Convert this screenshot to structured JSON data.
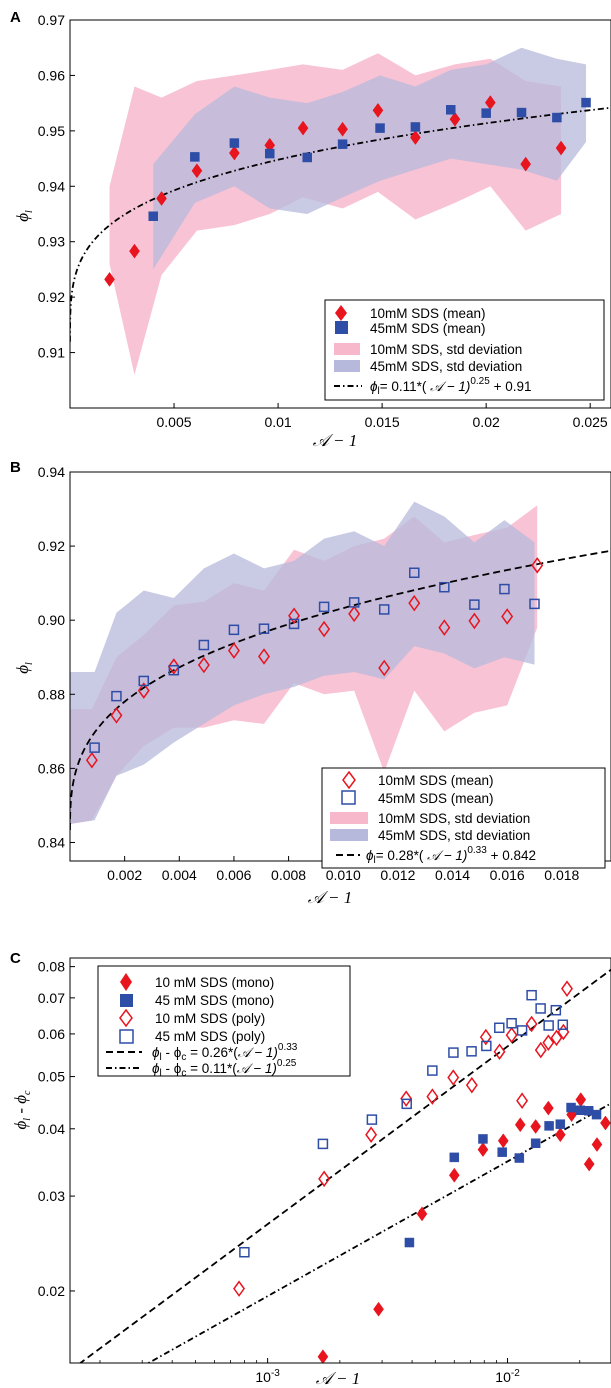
{
  "colors": {
    "red": "#e8141e",
    "blue": "#2e4da6",
    "pink_band": "#f7b8cc",
    "blue_band": "#b7b9dc"
  },
  "panel_letters": [
    "A",
    "B",
    "C"
  ],
  "chart_data": [
    {
      "panel": "A",
      "type": "scatter",
      "xlabel": "𝒜 − 1",
      "ylabel": "ϕ",
      "ylabel_sub": "l",
      "xlim": [
        0,
        0.026
      ],
      "ylim": [
        0.9,
        0.97
      ],
      "xticks": [
        "0.005",
        "0.01",
        "0.015",
        "0.02",
        "0.025"
      ],
      "xtick_values": [
        0.005,
        0.01,
        0.015,
        0.02,
        0.025
      ],
      "yticks": [
        "0.91",
        "0.92",
        "0.93",
        "0.94",
        "0.95",
        "0.96",
        "0.97"
      ],
      "ytick_values": [
        0.91,
        0.92,
        0.93,
        0.94,
        0.95,
        0.96,
        0.97
      ],
      "series": [
        {
          "name": "10mM SDS (mean)",
          "marker": "diamond-filled",
          "color": "red",
          "x": [
            0.0019,
            0.0031,
            0.0044,
            0.0061,
            0.0079,
            0.0096,
            0.0112,
            0.0131,
            0.0148,
            0.0166,
            0.0185,
            0.0202,
            0.0219,
            0.0236
          ],
          "y": [
            0.9232,
            0.9283,
            0.9378,
            0.9428,
            0.946,
            0.9474,
            0.9505,
            0.9503,
            0.9537,
            0.9488,
            0.9521,
            0.9551,
            0.944,
            0.9469
          ]
        },
        {
          "name": "45mM SDS (mean)",
          "marker": "square-filled",
          "color": "blue",
          "x": [
            0.004,
            0.006,
            0.0079,
            0.0096,
            0.0114,
            0.0131,
            0.0149,
            0.0166,
            0.0183,
            0.02,
            0.0217,
            0.0234,
            0.0248
          ],
          "y": [
            0.9346,
            0.9453,
            0.9478,
            0.9459,
            0.9452,
            0.9476,
            0.9505,
            0.9507,
            0.9538,
            0.9532,
            0.9533,
            0.9524,
            0.9551
          ]
        }
      ],
      "bands": [
        {
          "name": "10mM SDS, std deviation",
          "color": "pink_band",
          "x": [
            0.0019,
            0.0031,
            0.0044,
            0.0061,
            0.0079,
            0.0096,
            0.0112,
            0.0131,
            0.0148,
            0.0166,
            0.0185,
            0.0202,
            0.0219,
            0.0236
          ],
          "upper": [
            0.94,
            0.958,
            0.956,
            0.959,
            0.96,
            0.961,
            0.962,
            0.961,
            0.964,
            0.96,
            0.962,
            0.963,
            0.959,
            0.958
          ],
          "lower": [
            0.926,
            0.906,
            0.924,
            0.932,
            0.933,
            0.935,
            0.938,
            0.936,
            0.939,
            0.934,
            0.937,
            0.94,
            0.932,
            0.935
          ]
        },
        {
          "name": "45mM SDS, std deviation",
          "color": "blue_band",
          "x": [
            0.004,
            0.006,
            0.0079,
            0.0096,
            0.0114,
            0.0131,
            0.0149,
            0.0166,
            0.0183,
            0.02,
            0.0217,
            0.0234,
            0.0248
          ],
          "upper": [
            0.944,
            0.953,
            0.958,
            0.956,
            0.955,
            0.957,
            0.96,
            0.958,
            0.961,
            0.962,
            0.965,
            0.963,
            0.962
          ],
          "lower": [
            0.925,
            0.937,
            0.94,
            0.936,
            0.935,
            0.938,
            0.941,
            0.943,
            0.945,
            0.944,
            0.943,
            0.941,
            0.948
          ]
        }
      ],
      "fit": {
        "label_prefix": "ϕ",
        "label_sub": "l",
        "label_text": "= 0.11*(",
        "label_A": " 𝒜 − 1)",
        "label_exp": "0.25",
        "label_tail": " + 0.91",
        "a": 0.11,
        "b": 0.25,
        "c": 0.91,
        "style": "dashdot"
      },
      "legend": [
        "10mM SDS (mean)",
        "45mM SDS (mean)",
        "10mM SDS, std deviation",
        "45mM SDS, std deviation"
      ],
      "legend_position": "bottom-right"
    },
    {
      "panel": "B",
      "type": "scatter",
      "xlabel": "𝒜 − 1",
      "ylabel": "ϕ",
      "ylabel_sub": "l",
      "xlim": [
        0,
        0.0198
      ],
      "ylim": [
        0.835,
        0.94
      ],
      "xticks": [
        "0.002",
        "0.004",
        "0.006",
        "0.008",
        "0.010",
        "0.012",
        "0.014",
        "0.016",
        "0.018"
      ],
      "xtick_values": [
        0.002,
        0.004,
        0.006,
        0.008,
        0.01,
        0.012,
        0.014,
        0.016,
        0.018
      ],
      "yticks": [
        "0.84",
        "0.86",
        "0.88",
        "0.90",
        "0.92",
        "0.94"
      ],
      "ytick_values": [
        0.84,
        0.86,
        0.88,
        0.9,
        0.92,
        0.94
      ],
      "series": [
        {
          "name": "10mM SDS (mean)",
          "marker": "diamond-open",
          "color": "red",
          "x": [
            0.0008,
            0.0017,
            0.0027,
            0.0038,
            0.0049,
            0.006,
            0.0071,
            0.0082,
            0.0093,
            0.0104,
            0.0115,
            0.0126,
            0.0137,
            0.0148,
            0.016,
            0.0171
          ],
          "y": [
            0.8622,
            0.8743,
            0.881,
            0.8875,
            0.8879,
            0.8918,
            0.8902,
            0.9012,
            0.8976,
            0.9017,
            0.8871,
            0.9046,
            0.898,
            0.8998,
            0.901,
            0.9148
          ]
        },
        {
          "name": "45mM SDS (mean)",
          "marker": "square-open",
          "color": "blue",
          "x": [
            0.0009,
            0.0017,
            0.0027,
            0.0038,
            0.0049,
            0.006,
            0.0071,
            0.0082,
            0.0093,
            0.0104,
            0.0115,
            0.0126,
            0.0137,
            0.0148,
            0.0159,
            0.017
          ],
          "y": [
            0.8656,
            0.8795,
            0.8836,
            0.8865,
            0.8933,
            0.8974,
            0.8977,
            0.899,
            0.9036,
            0.9048,
            0.9029,
            0.9128,
            0.9089,
            0.9042,
            0.9084,
            0.9044
          ]
        }
      ],
      "bands": [
        {
          "name": "10mM SDS, std deviation",
          "color": "pink_band",
          "x": [
            0.0,
            0.0008,
            0.0017,
            0.0027,
            0.0038,
            0.0049,
            0.006,
            0.0071,
            0.0082,
            0.0093,
            0.0104,
            0.0115,
            0.0126,
            0.0137,
            0.0148,
            0.016,
            0.0171
          ],
          "upper": [
            0.876,
            0.876,
            0.89,
            0.896,
            0.904,
            0.905,
            0.91,
            0.908,
            0.919,
            0.916,
            0.92,
            0.922,
            0.928,
            0.921,
            0.923,
            0.925,
            0.931
          ],
          "lower": [
            0.845,
            0.846,
            0.858,
            0.866,
            0.871,
            0.871,
            0.873,
            0.872,
            0.883,
            0.88,
            0.881,
            0.859,
            0.881,
            0.87,
            0.875,
            0.877,
            0.898
          ]
        },
        {
          "name": "45mM SDS, std deviation",
          "color": "blue_band",
          "x": [
            0.0,
            0.0009,
            0.0017,
            0.0027,
            0.0038,
            0.0049,
            0.006,
            0.0071,
            0.0082,
            0.0093,
            0.0104,
            0.0115,
            0.0126,
            0.0137,
            0.0148,
            0.0159,
            0.017
          ],
          "upper": [
            0.886,
            0.886,
            0.902,
            0.908,
            0.906,
            0.914,
            0.918,
            0.914,
            0.916,
            0.922,
            0.924,
            0.92,
            0.932,
            0.928,
            0.921,
            0.927,
            0.921
          ],
          "lower": [
            0.845,
            0.846,
            0.858,
            0.861,
            0.867,
            0.872,
            0.877,
            0.88,
            0.882,
            0.885,
            0.886,
            0.884,
            0.893,
            0.891,
            0.887,
            0.89,
            0.888
          ]
        }
      ],
      "fit": {
        "label_prefix": "ϕ",
        "label_sub": "l",
        "label_text": "= 0.28*(",
        "label_A": " 𝒜 − 1)",
        "label_exp": "0.33",
        "label_tail": " + 0.842",
        "a": 0.28,
        "b": 0.33,
        "c": 0.842,
        "style": "dashed"
      },
      "legend": [
        "10mM SDS (mean)",
        "45mM SDS (mean)",
        "10mM SDS, std deviation",
        "45mM SDS, std deviation"
      ],
      "legend_position": "bottom-right"
    },
    {
      "panel": "C",
      "type": "scatter",
      "xscale": "log",
      "yscale": "log",
      "xlabel": "𝒜 − 1",
      "ylabel": "ϕ",
      "ylabel_sub": "l",
      "ylabel_mid": " - ϕ",
      "ylabel_sub2": "c",
      "xlim": [
        0.00015,
        0.027
      ],
      "ylim": [
        0.0147,
        0.083
      ],
      "xticks": [
        "10",
        "10"
      ],
      "xtick_exps": [
        "-3",
        "-2"
      ],
      "xtick_values": [
        0.001,
        0.01
      ],
      "yticks": [
        "0.02",
        "0.03",
        "0.04",
        "0.05",
        "0.06",
        "0.07",
        "0.08"
      ],
      "ytick_values": [
        0.02,
        0.03,
        0.04,
        0.05,
        0.06,
        0.07,
        0.08
      ],
      "series": [
        {
          "name": "10 mM SDS (mono)",
          "marker": "diamond-filled",
          "color": "red",
          "x": [
            0.0017,
            0.0029,
            0.0044,
            0.006,
            0.0079,
            0.0096,
            0.0113,
            0.0131,
            0.0148,
            0.0166,
            0.0185,
            0.0202,
            0.0219,
            0.0236,
            0.0256
          ],
          "y": [
            0.0151,
            0.0185,
            0.0278,
            0.0328,
            0.0366,
            0.038,
            0.0407,
            0.0404,
            0.0437,
            0.039,
            0.0425,
            0.0453,
            0.0344,
            0.0374,
            0.041
          ]
        },
        {
          "name": "45 mM SDS (mono)",
          "marker": "square-filled",
          "color": "blue",
          "x": [
            0.0039,
            0.006,
            0.0079,
            0.0095,
            0.0112,
            0.0131,
            0.0149,
            0.0166,
            0.0184,
            0.0201,
            0.0218,
            0.0235
          ],
          "y": [
            0.0246,
            0.0354,
            0.0383,
            0.0362,
            0.0353,
            0.0376,
            0.0405,
            0.0408,
            0.0438,
            0.0433,
            0.0432,
            0.0425
          ]
        },
        {
          "name": "10 mM SDS (poly)",
          "marker": "diamond-open",
          "color": "red",
          "x": [
            0.00076,
            0.00172,
            0.0027,
            0.00378,
            0.00486,
            0.00594,
            0.0071,
            0.00812,
            0.00926,
            0.0104,
            0.0115,
            0.0126,
            0.01376,
            0.0148,
            0.016,
            0.0171,
            0.0177
          ],
          "y": [
            0.0202,
            0.0323,
            0.039,
            0.0455,
            0.0459,
            0.0498,
            0.0482,
            0.0592,
            0.0556,
            0.0597,
            0.0451,
            0.0626,
            0.056,
            0.0578,
            0.059,
            0.0605,
            0.0728
          ]
        },
        {
          "name": "45 mM SDS (poly)",
          "marker": "square-open",
          "color": "blue",
          "x": [
            0.0008,
            0.0017,
            0.00272,
            0.0038,
            0.00486,
            0.00595,
            0.00708,
            0.00816,
            0.00924,
            0.0104,
            0.0115,
            0.0126,
            0.01374,
            0.01484,
            0.0159,
            0.017
          ],
          "y": [
            0.0236,
            0.0375,
            0.0416,
            0.0445,
            0.0513,
            0.0554,
            0.0557,
            0.057,
            0.0616,
            0.0628,
            0.0609,
            0.0708,
            0.0669,
            0.0622,
            0.0664,
            0.0624
          ]
        }
      ],
      "fits": [
        {
          "label_prefix": "ϕ",
          "label_sub": "l",
          "label_mid": " - ϕ",
          "label_sub2": "c",
          "label_text": " = 0.26*(",
          "label_A": "𝒜 − 1)",
          "label_exp": "0.33",
          "a": 0.26,
          "b": 0.33,
          "style": "dashed"
        },
        {
          "label_prefix": "ϕ",
          "label_sub": "l",
          "label_mid": " - ϕ",
          "label_sub2": "c",
          "label_text": " = 0.11*(",
          "label_A": "𝒜 − 1)",
          "label_exp": "0.25",
          "a": 0.11,
          "b": 0.25,
          "style": "dashdot"
        }
      ],
      "legend": [
        "10 mM SDS (mono)",
        "45 mM SDS (mono)",
        "10 mM SDS (poly)",
        "45 mM SDS (poly)"
      ],
      "legend_position": "top-left"
    }
  ]
}
